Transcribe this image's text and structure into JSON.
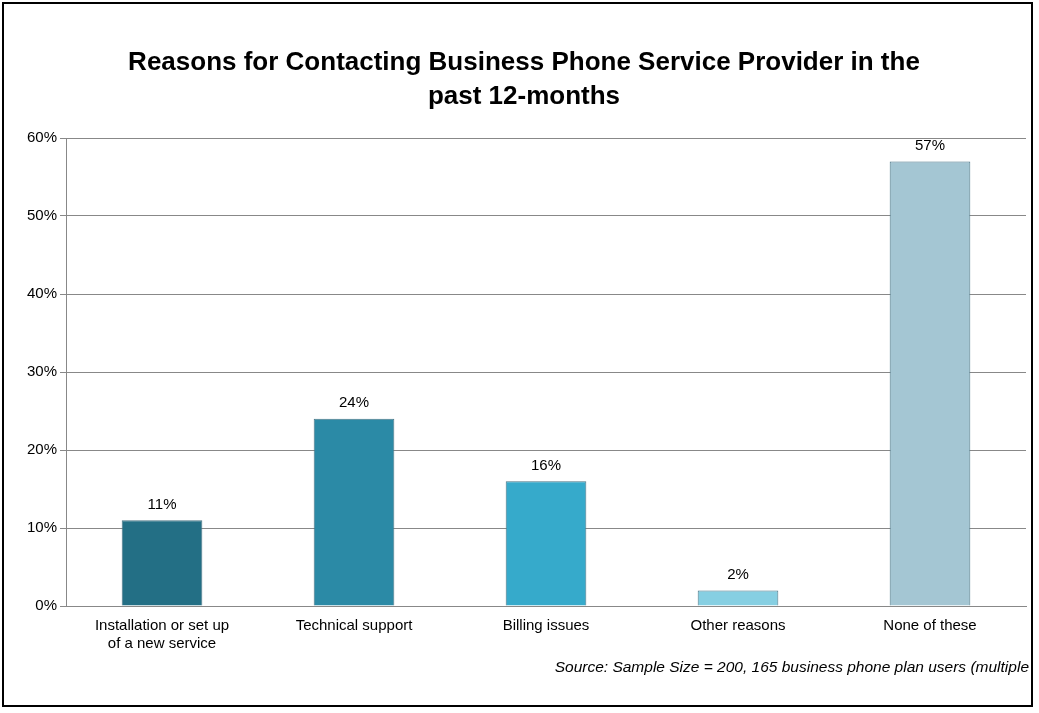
{
  "chart_data": {
    "type": "bar",
    "title": "Reasons for Contacting Business Phone Service Provider in the past 12-months",
    "categories": [
      "Installation or set up of a new service",
      "Technical support",
      "Billing issues",
      "Other reasons",
      "None of these"
    ],
    "values": [
      11,
      24,
      16,
      2,
      57
    ],
    "colors": [
      "#236f85",
      "#2b8aa6",
      "#36aacb",
      "#86cfe2",
      "#a4c6d3"
    ],
    "ylim": [
      0,
      60
    ],
    "yticks": [
      {
        "value": 0,
        "label": "0%"
      },
      {
        "value": 10,
        "label": "10%"
      },
      {
        "value": 20,
        "label": "20%"
      },
      {
        "value": 30,
        "label": "30%"
      },
      {
        "value": 40,
        "label": "40%"
      },
      {
        "value": 50,
        "label": "50%"
      },
      {
        "value": 60,
        "label": "60%"
      }
    ],
    "value_labels": [
      "11%",
      "24%",
      "16%",
      "2%",
      "57%"
    ],
    "grid": "y",
    "legend": false,
    "annotations": [
      "Source: Sample Size = 200, 165 business phone plan users (multiple"
    ]
  }
}
